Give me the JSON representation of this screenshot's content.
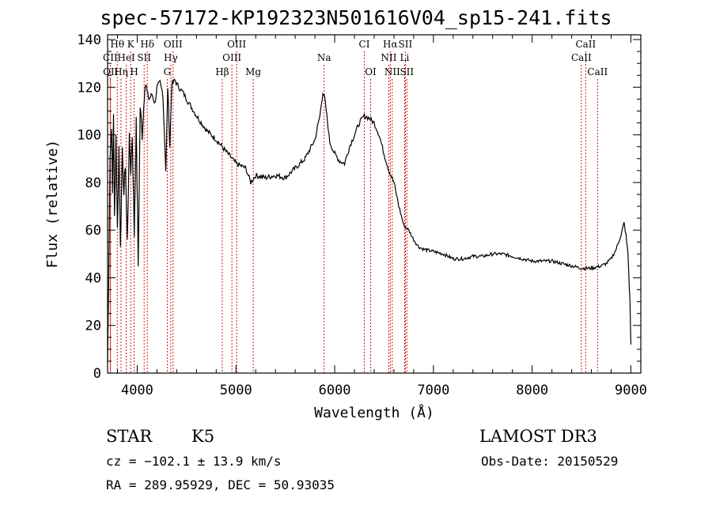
{
  "page": {
    "object_class": "STAR",
    "subclass": "K5",
    "survey": "LAMOST DR3",
    "velocity": "cz = −102.1 ± 13.9 km/s",
    "obs_date": "Obs-Date: 20150529",
    "coords": "RA = 289.95929, DEC =  50.93035"
  },
  "chart_data": {
    "type": "line",
    "title": "spec-57172-KP192323N501616V04_sp15-241.fits",
    "xlabel": "Wavelength (Å)",
    "ylabel": "Flux (relative)",
    "xlim": [
      3700,
      9100
    ],
    "ylim": [
      0,
      142
    ],
    "xticks": [
      4000,
      5000,
      6000,
      7000,
      8000,
      9000
    ],
    "yticks": [
      0,
      20,
      40,
      60,
      80,
      100,
      120,
      140
    ],
    "line_color": "#000000",
    "marker_color": "#cc0000",
    "x": [
      3700,
      3710,
      3725,
      3740,
      3750,
      3760,
      3770,
      3785,
      3800,
      3815,
      3830,
      3850,
      3865,
      3880,
      3900,
      3920,
      3935,
      3950,
      3970,
      3990,
      4010,
      4030,
      4050,
      4080,
      4100,
      4120,
      4150,
      4180,
      4200,
      4230,
      4260,
      4290,
      4310,
      4330,
      4350,
      4380,
      4420,
      4460,
      4500,
      4600,
      4700,
      4800,
      4860,
      4900,
      5000,
      5100,
      5150,
      5200,
      5300,
      5400,
      5500,
      5600,
      5700,
      5800,
      5850,
      5880,
      5900,
      5920,
      5950,
      6000,
      6050,
      6100,
      6150,
      6200,
      6250,
      6300,
      6350,
      6400,
      6450,
      6500,
      6550,
      6600,
      6650,
      6700,
      6750,
      6800,
      6850,
      6900,
      7000,
      7100,
      7200,
      7300,
      7400,
      7500,
      7600,
      7700,
      7800,
      7900,
      8000,
      8100,
      8200,
      8300,
      8400,
      8500,
      8600,
      8700,
      8750,
      8800,
      8850,
      8900,
      8930,
      8950,
      8970,
      8990,
      9000
    ],
    "y": [
      5,
      35,
      90,
      105,
      75,
      110,
      65,
      100,
      60,
      95,
      55,
      92,
      75,
      88,
      55,
      98,
      85,
      100,
      58,
      105,
      45,
      112,
      100,
      123,
      118,
      115,
      117,
      113,
      120,
      122,
      117,
      85,
      120,
      95,
      121,
      123,
      120,
      118,
      115,
      108,
      102,
      98,
      95,
      93,
      88,
      86,
      80,
      83,
      82,
      83,
      82,
      86,
      90,
      98,
      108,
      118,
      115,
      108,
      97,
      92,
      89,
      88,
      95,
      100,
      105,
      108,
      107,
      105,
      100,
      92,
      85,
      80,
      70,
      62,
      60,
      56,
      53,
      52,
      51,
      50,
      48,
      48,
      49,
      49,
      50,
      50,
      49,
      48,
      47,
      47,
      47,
      46,
      45,
      44,
      44,
      45,
      46,
      48,
      52,
      58,
      63,
      58,
      50,
      30,
      12
    ],
    "lines": [
      {
        "label": "Hθ",
        "x": 3798,
        "row": 0
      },
      {
        "label": "K",
        "x": 3934,
        "row": 0
      },
      {
        "label": "Hδ",
        "x": 4102,
        "row": 0
      },
      {
        "label": "OIII",
        "x": 4363,
        "row": 0
      },
      {
        "label": "OIII",
        "x": 5007,
        "row": 0
      },
      {
        "label": "CI",
        "x": 6300,
        "row": 0
      },
      {
        "label": "Hα",
        "x": 6563,
        "row": 0
      },
      {
        "label": "SII",
        "x": 6716,
        "row": 0
      },
      {
        "label": "CaII",
        "x": 8542,
        "row": 0
      },
      {
        "label": "CII",
        "x": 3727,
        "row": 1
      },
      {
        "label": "HeI",
        "x": 3889,
        "row": 1
      },
      {
        "label": "SII",
        "x": 4070,
        "row": 1
      },
      {
        "label": "Hγ",
        "x": 4340,
        "row": 1
      },
      {
        "label": "OIII",
        "x": 4959,
        "row": 1
      },
      {
        "label": "Na",
        "x": 5893,
        "row": 1
      },
      {
        "label": "NII",
        "x": 6548,
        "row": 1
      },
      {
        "label": "Li",
        "x": 6708,
        "row": 1
      },
      {
        "label": "CaII",
        "x": 8498,
        "row": 1
      },
      {
        "label": "OII",
        "x": 3730,
        "row": 2
      },
      {
        "label": "Hη",
        "x": 3836,
        "row": 2
      },
      {
        "label": "H",
        "x": 3969,
        "row": 2
      },
      {
        "label": "G",
        "x": 4304,
        "row": 2
      },
      {
        "label": "Hβ",
        "x": 4861,
        "row": 2
      },
      {
        "label": "Mg",
        "x": 5175,
        "row": 2
      },
      {
        "label": "OI",
        "x": 6364,
        "row": 2
      },
      {
        "label": "NII",
        "x": 6583,
        "row": 2
      },
      {
        "label": "SII",
        "x": 6731,
        "row": 2
      },
      {
        "label": "CaII",
        "x": 8662,
        "row": 2
      }
    ]
  }
}
